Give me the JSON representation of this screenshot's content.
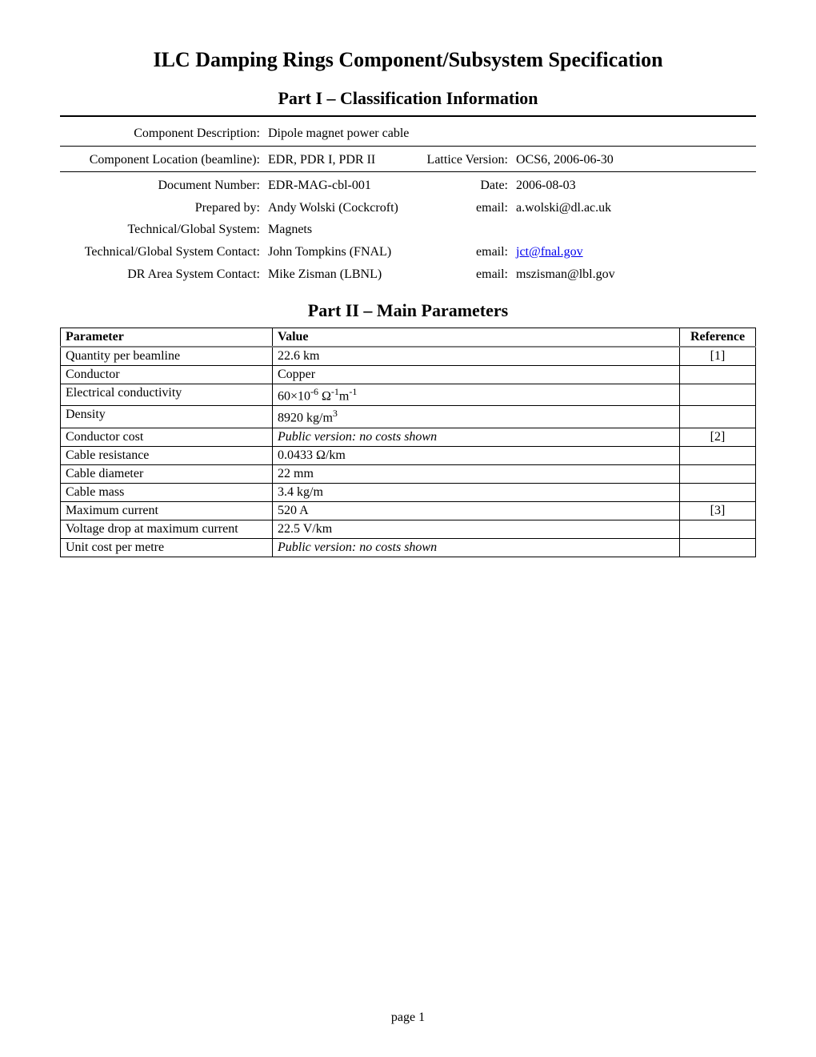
{
  "title": "ILC Damping Rings Component/Subsystem Specification",
  "part1": {
    "heading": "Part I – Classification Information",
    "rows": {
      "component_description": {
        "label": "Component Description:",
        "value": "Dipole magnet power cable"
      },
      "component_location": {
        "label": "Component Location (beamline):",
        "value": "EDR, PDR I, PDR II"
      },
      "lattice_version": {
        "label": "Lattice Version:",
        "value": "OCS6, 2006-06-30"
      },
      "document_number": {
        "label": "Document Number:",
        "value": "EDR-MAG-cbl-001"
      },
      "date": {
        "label": "Date:",
        "value": "2006-08-03"
      },
      "prepared_by": {
        "label": "Prepared by:",
        "value": "Andy Wolski (Cockcroft)"
      },
      "prepared_email": {
        "label": "email:",
        "value": "a.wolski@dl.ac.uk"
      },
      "tech_global_system": {
        "label": "Technical/Global System:",
        "value": "Magnets"
      },
      "tech_global_contact": {
        "label": "Technical/Global System Contact:",
        "value": "John Tompkins (FNAL)"
      },
      "tech_global_email": {
        "label": "email:",
        "value": "jct@fnal.gov"
      },
      "dr_area_contact": {
        "label": "DR Area System Contact:",
        "value": "Mike Zisman (LBNL)"
      },
      "dr_area_email": {
        "label": "email:",
        "value": "mszisman@lbl.gov"
      }
    }
  },
  "part2": {
    "heading": "Part II – Main Parameters",
    "columns": {
      "parameter": "Parameter",
      "value": "Value",
      "reference": "Reference"
    },
    "rows": [
      {
        "parameter": "Quantity per beamline",
        "value": "22.6 km",
        "reference": "[1]"
      },
      {
        "parameter": "Conductor",
        "value": "Copper",
        "reference": ""
      },
      {
        "parameter": "Electrical conductivity",
        "value_html": "60×10<sup>-6</sup> Ω<sup>-1</sup>m<sup>-1</sup>",
        "reference": ""
      },
      {
        "parameter": "Density",
        "value_html": "8920 kg/m<sup>3</sup>",
        "reference": ""
      },
      {
        "parameter": "Conductor cost",
        "value_italic": "Public version: no costs shown",
        "reference": "[2]"
      },
      {
        "parameter": "Cable resistance",
        "value": "0.0433 Ω/km",
        "reference": ""
      },
      {
        "parameter": "Cable diameter",
        "value": "22 mm",
        "reference": ""
      },
      {
        "parameter": "Cable mass",
        "value": "3.4 kg/m",
        "reference": ""
      },
      {
        "parameter": "Maximum current",
        "value": "520 A",
        "reference": "[3]"
      },
      {
        "parameter": "Voltage drop at maximum current",
        "value": "22.5 V/km",
        "reference": ""
      },
      {
        "parameter": "Unit cost per metre",
        "value_italic": "Public version: no costs shown",
        "reference": ""
      }
    ]
  },
  "footer": {
    "page_number": "page 1"
  }
}
